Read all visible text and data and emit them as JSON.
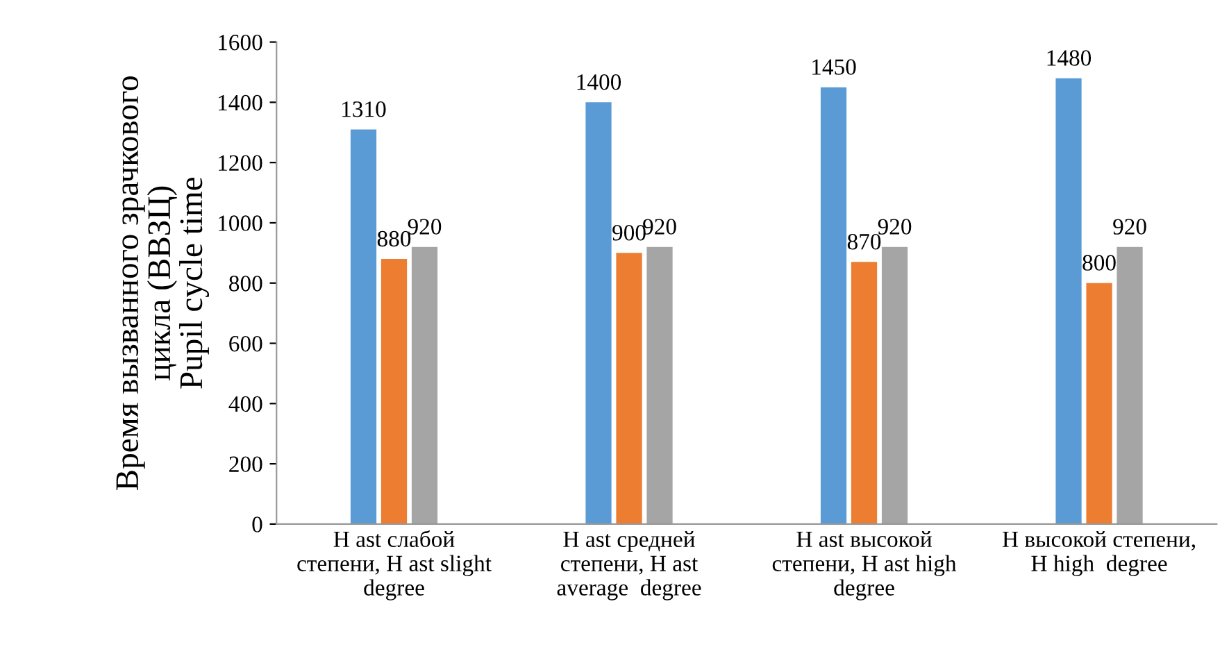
{
  "chart_data": {
    "type": "bar",
    "ylabel": "Время вызванного зрачкового\nцикла (ВВЗЦ)\nPupil cycle time",
    "categories": [
      "H ast слабой\nстепени, H ast slight\ndegree",
      "H ast средней\nстепени, H ast\naverage  degree",
      "H ast высокой\nстепени, H ast high\ndegree",
      "H высокой степени,\nH high  degree"
    ],
    "series": [
      {
        "color": "#5b9bd5",
        "values": [
          1310,
          1400,
          1450,
          1480
        ]
      },
      {
        "color": "#ed7d31",
        "values": [
          880,
          900,
          870,
          800
        ]
      },
      {
        "color": "#a5a5a5",
        "values": [
          920,
          920,
          920,
          920
        ]
      }
    ],
    "ylim": [
      0,
      1600
    ],
    "yticks": [
      0,
      200,
      400,
      600,
      800,
      1000,
      1200,
      1400,
      1600
    ],
    "grid": false,
    "data_labels": true
  }
}
